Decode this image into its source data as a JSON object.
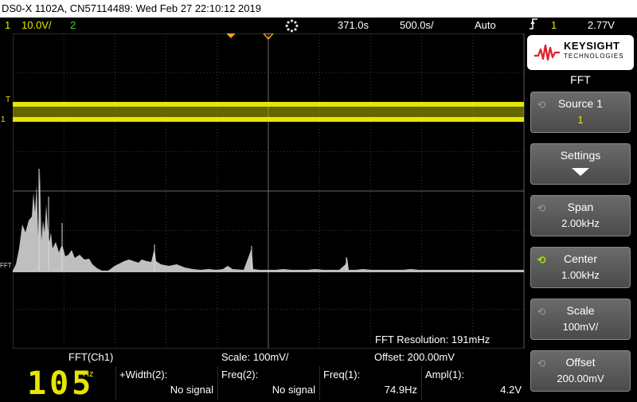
{
  "title": "DS0-X 1102A, CN57114489: Wed Feb 27 22:10:12 2019",
  "status": {
    "ch1_num": "1",
    "ch1_scale": "10.0V/",
    "ch2_num": "2",
    "time_pos": "371.0s",
    "time_scale": "500.0s/",
    "trigger_mode": "Auto",
    "trigger_src": "1",
    "trigger_level": "2.77V"
  },
  "screen": {
    "marker_t": "T",
    "marker_1": "1",
    "marker_fft": "FFT",
    "fft_resolution": "FFT Resolution: 191mHz"
  },
  "logo": {
    "brand": "KEYSIGHT",
    "sub": "TECHNOLOGIES"
  },
  "menu": {
    "title": "FFT",
    "keys": [
      {
        "label": "Source 1",
        "value": "1",
        "knob": "⟲"
      },
      {
        "label": "Settings",
        "value": ""
      },
      {
        "label": "Span",
        "value": "2.00kHz",
        "knob": "⟲"
      },
      {
        "label": "Center",
        "value": "1.00kHz",
        "knob": "⟲"
      },
      {
        "label": "Scale",
        "value": "100mV/",
        "knob": "⟲"
      },
      {
        "label": "Offset",
        "value": "200.00mV",
        "knob": "⟲"
      }
    ]
  },
  "bottom": {
    "fft_source": "FFT(Ch1)",
    "scale": "Scale: 100mV/",
    "offset": "Offset: 200.00mV"
  },
  "measure": {
    "counter": "105",
    "counter_unit": "Hz",
    "m1_label": "+Width(2):",
    "m1_value": "No signal",
    "m2_label": "Freq(2):",
    "m2_value": "No signal",
    "m3_label": "Freq(1):",
    "m3_value": "74.9Hz",
    "m4_label": "Ampl(1):",
    "m4_value": "4.2V"
  },
  "colors": {
    "ch1": "#e6e600",
    "ch2": "#3fd13f",
    "fft_trace": "#d8d8d8",
    "active_knob": "#9de000",
    "trigger_marker": "#f0a020"
  }
}
